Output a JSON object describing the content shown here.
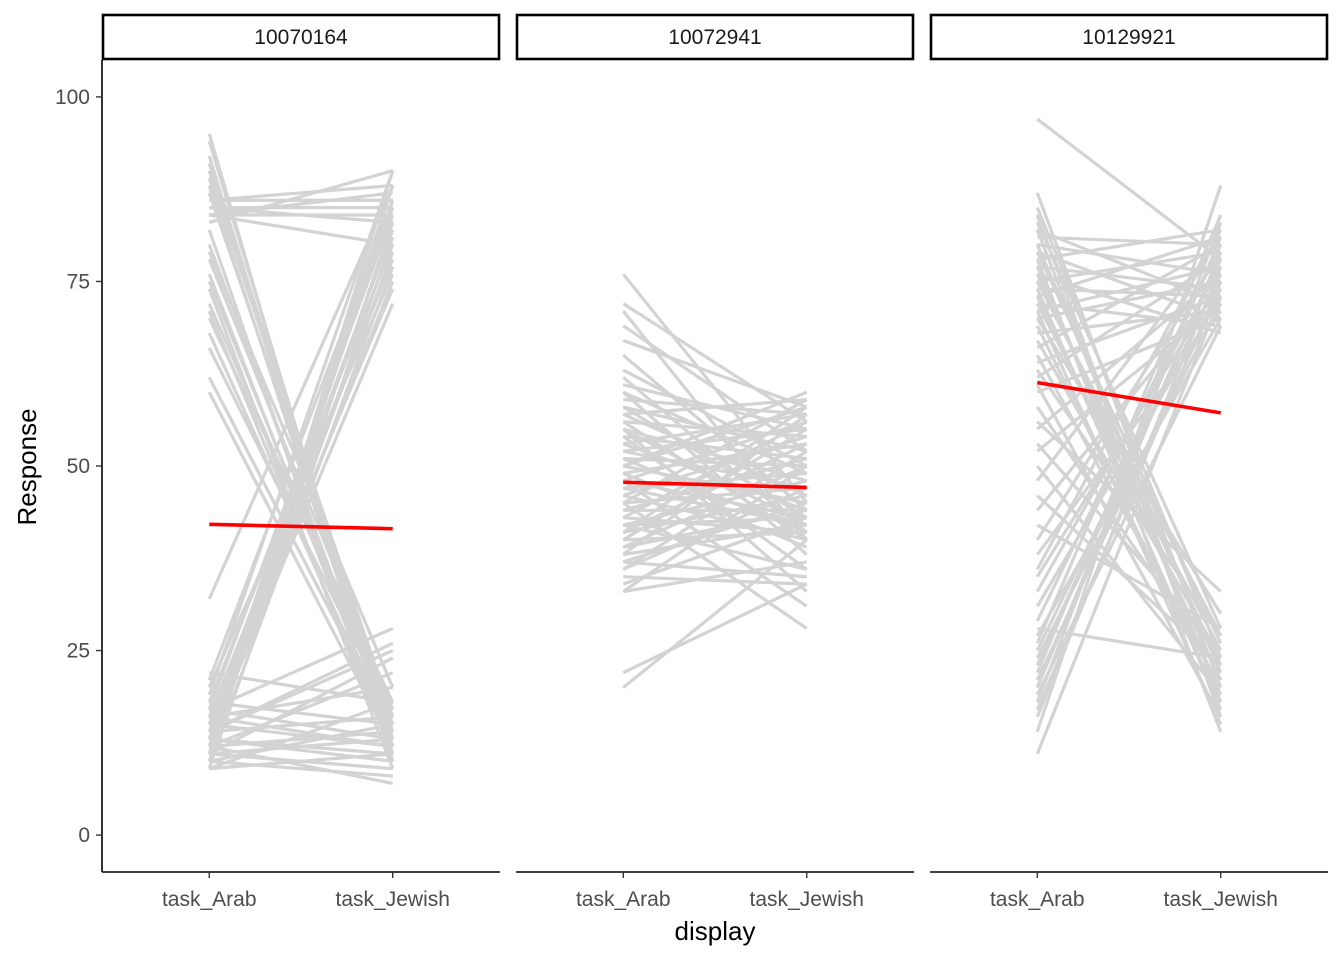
{
  "chart_data": {
    "type": "line",
    "xlabel": "display",
    "ylabel": "Response",
    "ylim": [
      -5,
      105
    ],
    "yticks": [
      0,
      25,
      50,
      75,
      100
    ],
    "categories": [
      "task_Arab",
      "task_Jewish"
    ],
    "grid": false,
    "individual_line_color": "#d3d3d3",
    "mean_line_color": "#ff0000",
    "facets": [
      {
        "title": "10070164",
        "mean": [
          42.1,
          41.5
        ],
        "individual_lines": [
          [
            95,
            10
          ],
          [
            94,
            12
          ],
          [
            92,
            11
          ],
          [
            91,
            14
          ],
          [
            90,
            13
          ],
          [
            89,
            16
          ],
          [
            88,
            12
          ],
          [
            87,
            15
          ],
          [
            86,
            86
          ],
          [
            85,
            85
          ],
          [
            84,
            87
          ],
          [
            84,
            84
          ],
          [
            83,
            90
          ],
          [
            86,
            88
          ],
          [
            85,
            83
          ],
          [
            84,
            80
          ],
          [
            82,
            10
          ],
          [
            80,
            13
          ],
          [
            79,
            20
          ],
          [
            78,
            17
          ],
          [
            76,
            12
          ],
          [
            75,
            14
          ],
          [
            74,
            9
          ],
          [
            72,
            15
          ],
          [
            71,
            11
          ],
          [
            70,
            18
          ],
          [
            68,
            13
          ],
          [
            66,
            16
          ],
          [
            62,
            14
          ],
          [
            60,
            12
          ],
          [
            32,
            88
          ],
          [
            22,
            18
          ],
          [
            21,
            86
          ],
          [
            20,
            76
          ],
          [
            19,
            90
          ],
          [
            18,
            80
          ],
          [
            17,
            84
          ],
          [
            17,
            28
          ],
          [
            16,
            78
          ],
          [
            16,
            12
          ],
          [
            15,
            82
          ],
          [
            15,
            74
          ],
          [
            14,
            85
          ],
          [
            14,
            25
          ],
          [
            14,
            16
          ],
          [
            13,
            88
          ],
          [
            13,
            72
          ],
          [
            13,
            10
          ],
          [
            12,
            79
          ],
          [
            12,
            14
          ],
          [
            12,
            22
          ],
          [
            11,
            83
          ],
          [
            11,
            9
          ],
          [
            11,
            13
          ],
          [
            10,
            77
          ],
          [
            10,
            15
          ],
          [
            10,
            8
          ],
          [
            9,
            81
          ],
          [
            9,
            11
          ],
          [
            9,
            18
          ],
          [
            10,
            88
          ],
          [
            11,
            90
          ],
          [
            12,
            86
          ],
          [
            13,
            75
          ],
          [
            14,
            26
          ],
          [
            15,
            12
          ],
          [
            16,
            20
          ],
          [
            12,
            7
          ],
          [
            13,
            11
          ],
          [
            17,
            13
          ],
          [
            18,
            15
          ],
          [
            11,
            24
          ]
        ]
      },
      {
        "title": "10072941",
        "mean": [
          47.8,
          47.1
        ],
        "individual_lines": [
          [
            76,
            45
          ],
          [
            72,
            56
          ],
          [
            71,
            40
          ],
          [
            69,
            52
          ],
          [
            67,
            58
          ],
          [
            65,
            44
          ],
          [
            63,
            50
          ],
          [
            62,
            41
          ],
          [
            61,
            55
          ],
          [
            60,
            49
          ],
          [
            60,
            38
          ],
          [
            59,
            57
          ],
          [
            58,
            43
          ],
          [
            58,
            52
          ],
          [
            57,
            46
          ],
          [
            57,
            59
          ],
          [
            56,
            40
          ],
          [
            56,
            54
          ],
          [
            55,
            48
          ],
          [
            55,
            42
          ],
          [
            54,
            51
          ],
          [
            54,
            36
          ],
          [
            53,
            57
          ],
          [
            53,
            44
          ],
          [
            52,
            47
          ],
          [
            52,
            55
          ],
          [
            51,
            41
          ],
          [
            51,
            50
          ],
          [
            50,
            58
          ],
          [
            50,
            45
          ],
          [
            49,
            39
          ],
          [
            49,
            53
          ],
          [
            48,
            43
          ],
          [
            48,
            56
          ],
          [
            47,
            49
          ],
          [
            47,
            42
          ],
          [
            46,
            54
          ],
          [
            46,
            40
          ],
          [
            45,
            47
          ],
          [
            45,
            59
          ],
          [
            44,
            44
          ],
          [
            44,
            51
          ],
          [
            43,
            41
          ],
          [
            43,
            56
          ],
          [
            42,
            48
          ],
          [
            42,
            43
          ],
          [
            41,
            53
          ],
          [
            41,
            46
          ],
          [
            40,
            41
          ],
          [
            40,
            55
          ],
          [
            39,
            44
          ],
          [
            39,
            50
          ],
          [
            38,
            42
          ],
          [
            38,
            57
          ],
          [
            37,
            45
          ],
          [
            37,
            35
          ],
          [
            36,
            52
          ],
          [
            36,
            47
          ],
          [
            35,
            34
          ],
          [
            34,
            43
          ],
          [
            33,
            50
          ],
          [
            33,
            37
          ],
          [
            22,
            34
          ],
          [
            20,
            40
          ],
          [
            45,
            28
          ],
          [
            48,
            31
          ],
          [
            42,
            36
          ],
          [
            55,
            33
          ],
          [
            50,
            60
          ],
          [
            41,
            58
          ]
        ]
      },
      {
        "title": "10129921",
        "mean": [
          61.3,
          57.2
        ],
        "individual_lines": [
          [
            97,
            78
          ],
          [
            87,
            20
          ],
          [
            85,
            24
          ],
          [
            84,
            16
          ],
          [
            83,
            28
          ],
          [
            82,
            72
          ],
          [
            82,
            18
          ],
          [
            81,
            80
          ],
          [
            80,
            22
          ],
          [
            80,
            76
          ],
          [
            79,
            26
          ],
          [
            79,
            70
          ],
          [
            78,
            14
          ],
          [
            78,
            82
          ],
          [
            77,
            19
          ],
          [
            77,
            74
          ],
          [
            76,
            23
          ],
          [
            76,
            68
          ],
          [
            75,
            27
          ],
          [
            75,
            79
          ],
          [
            74,
            17
          ],
          [
            74,
            73
          ],
          [
            73,
            21
          ],
          [
            73,
            81
          ],
          [
            72,
            25
          ],
          [
            72,
            69
          ],
          [
            71,
            15
          ],
          [
            71,
            77
          ],
          [
            70,
            30
          ],
          [
            70,
            75
          ],
          [
            69,
            18
          ],
          [
            68,
            71
          ],
          [
            67,
            24
          ],
          [
            66,
            80
          ],
          [
            65,
            20
          ],
          [
            64,
            73
          ],
          [
            63,
            27
          ],
          [
            62,
            78
          ],
          [
            61,
            16
          ],
          [
            60,
            70
          ],
          [
            58,
            22
          ],
          [
            56,
            33
          ],
          [
            55,
            76
          ],
          [
            53,
            25
          ],
          [
            52,
            72
          ],
          [
            50,
            19
          ],
          [
            48,
            81
          ],
          [
            46,
            23
          ],
          [
            44,
            74
          ],
          [
            42,
            28
          ],
          [
            40,
            79
          ],
          [
            38,
            71
          ],
          [
            36,
            82
          ],
          [
            35,
            75
          ],
          [
            33,
            77
          ],
          [
            31,
            73
          ],
          [
            29,
            80
          ],
          [
            28,
            24
          ],
          [
            27,
            70
          ],
          [
            26,
            84
          ],
          [
            25,
            76
          ],
          [
            24,
            72
          ],
          [
            23,
            78
          ],
          [
            22,
            81
          ],
          [
            21,
            74
          ],
          [
            20,
            79
          ],
          [
            19,
            69
          ],
          [
            18,
            83
          ],
          [
            17,
            75
          ],
          [
            16,
            77
          ],
          [
            14,
            88
          ],
          [
            11,
            73
          ]
        ]
      }
    ]
  }
}
